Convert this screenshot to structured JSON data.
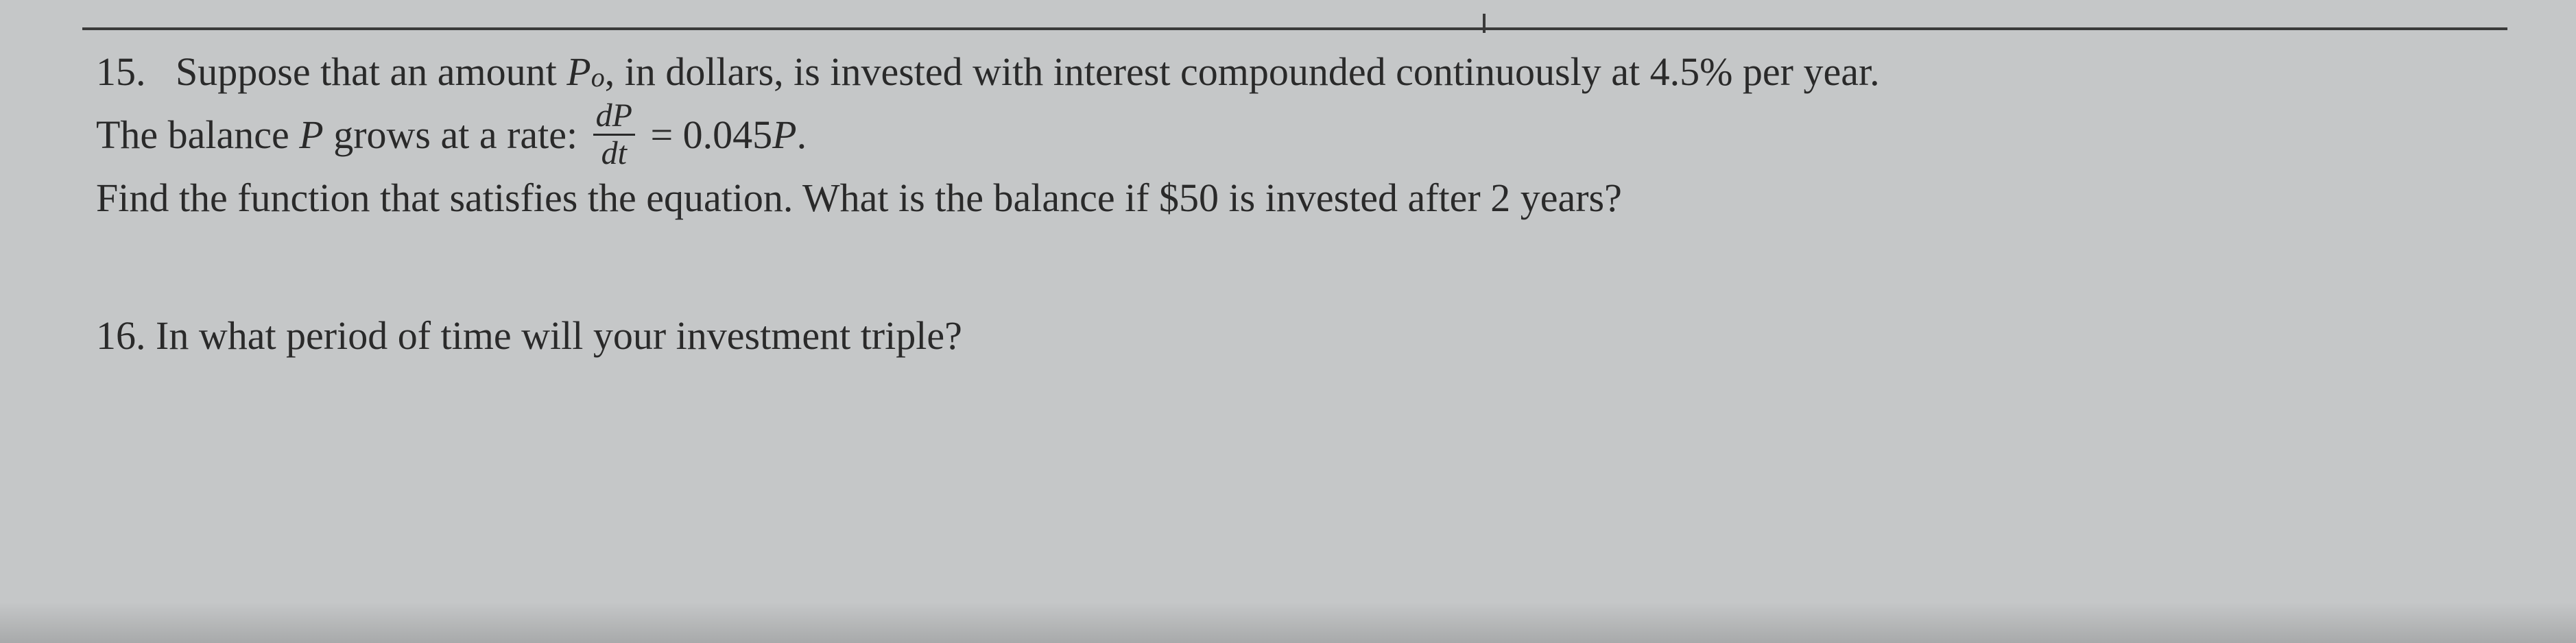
{
  "page": {
    "background_color": "#c5c7c8",
    "text_color": "#2a2a2a",
    "font_family": "Times New Roman",
    "base_fontsize": 58,
    "border_color": "#3a3a3a"
  },
  "problem15": {
    "number": "15.",
    "line1_part1": "Suppose that an amount ",
    "line1_var": "P",
    "line1_sub": "o",
    "line1_comma": ",",
    "line1_part2": " in dollars, is invested with interest compounded continuously at 4.5% per year.",
    "line2_part1": "The balance ",
    "line2_var": "P",
    "line2_part2": " grows at a rate: ",
    "fraction_num": "dP",
    "fraction_den": "dt",
    "line2_part3": " = 0.045",
    "line2_var2": "P",
    "line2_period": ".",
    "line3": "Find the function that satisfies the equation. What is the balance if $50 is invested after 2 years?"
  },
  "problem16": {
    "number": "16.",
    "text": " In what period of time will your investment triple?"
  }
}
